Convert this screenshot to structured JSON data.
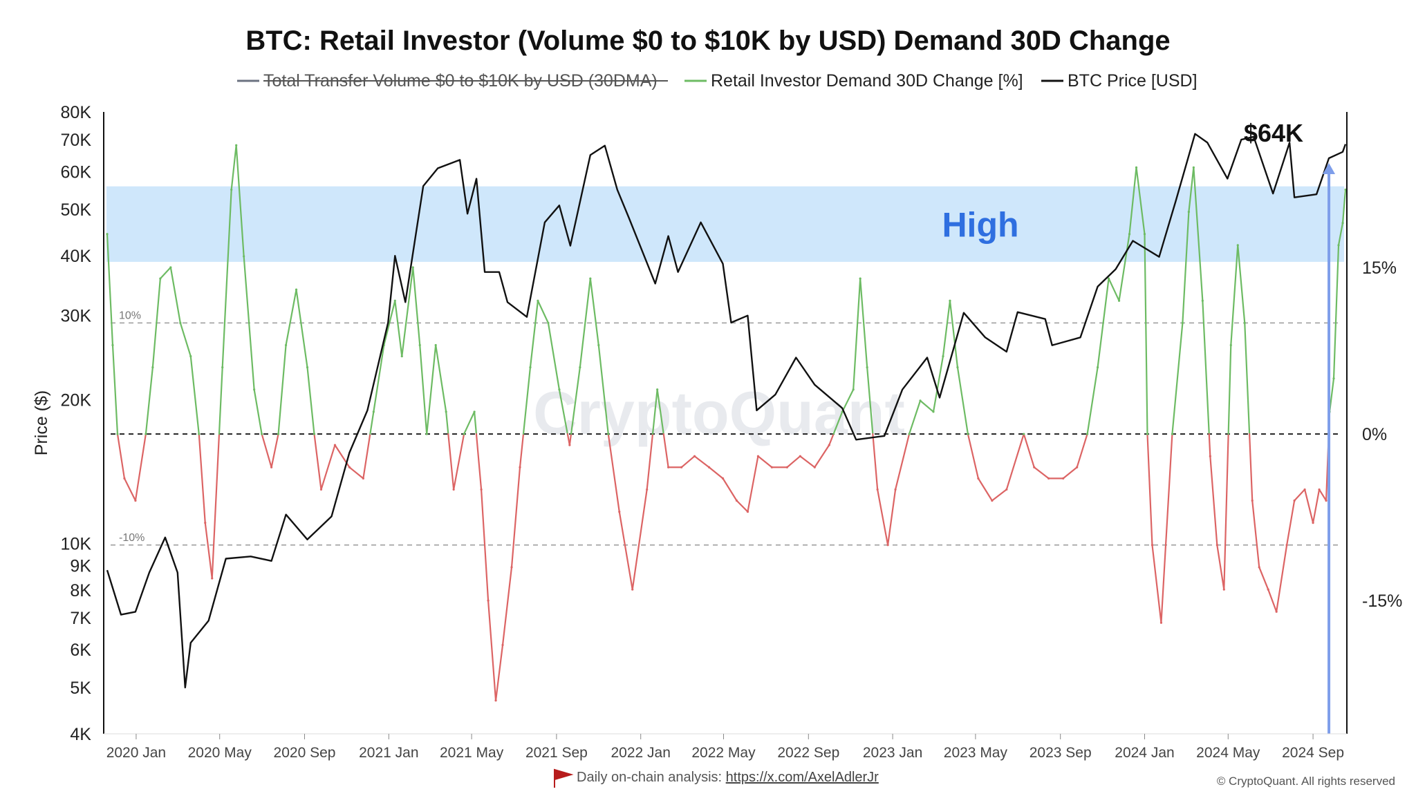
{
  "title": "BTC: Retail Investor (Volume $0 to $10K by USD) Demand 30D Change",
  "legend": [
    {
      "label": "Total Transfer Volume  $0 to $10K by USD (30DMA)",
      "color": "#6b7280",
      "struck": true
    },
    {
      "label": "Retail Investor Demand 30D Change [%]",
      "color": "#6dbb63",
      "struck": false
    },
    {
      "label": "BTC Price [USD]",
      "color": "#111111",
      "struck": false
    }
  ],
  "watermark": "CryptoQuant",
  "band_label": "High",
  "price_annotation": "$64K",
  "footer": {
    "prefix": "Daily on-chain analysis: ",
    "link": "https://x.com/AxelAdlerJr"
  },
  "copyright": "© CryptoQuant. All rights reserved",
  "colors": {
    "positive": "#6dbb63",
    "negative": "#dc6464",
    "price": "#111111",
    "band": "#cfe7fb",
    "marker": "#7e9eea",
    "grid": "#999999"
  },
  "chart_data": {
    "type": "line",
    "x_range": [
      "2019-11-15",
      "2024-10-20"
    ],
    "x_ticks": [
      {
        "date": "2020-01-01",
        "label": "2020 Jan"
      },
      {
        "date": "2020-05-01",
        "label": "2020 May"
      },
      {
        "date": "2020-09-01",
        "label": "2020 Sep"
      },
      {
        "date": "2021-01-01",
        "label": "2021 Jan"
      },
      {
        "date": "2021-05-01",
        "label": "2021 May"
      },
      {
        "date": "2021-09-01",
        "label": "2021 Sep"
      },
      {
        "date": "2022-01-01",
        "label": "2022 Jan"
      },
      {
        "date": "2022-05-01",
        "label": "2022 May"
      },
      {
        "date": "2022-09-01",
        "label": "2022 Sep"
      },
      {
        "date": "2023-01-01",
        "label": "2023 Jan"
      },
      {
        "date": "2023-05-01",
        "label": "2023 May"
      },
      {
        "date": "2023-09-01",
        "label": "2023 Sep"
      },
      {
        "date": "2024-01-01",
        "label": "2024 Jan"
      },
      {
        "date": "2024-05-01",
        "label": "2024 May"
      },
      {
        "date": "2024-09-01",
        "label": "2024 Sep"
      }
    ],
    "left_axis": {
      "label": "Price ($)",
      "scale": "log",
      "range": [
        4000,
        80000
      ],
      "ticks": [
        {
          "value": 80000,
          "label": "80K"
        },
        {
          "value": 70000,
          "label": "70K"
        },
        {
          "value": 60000,
          "label": "60K"
        },
        {
          "value": 50000,
          "label": "50K"
        },
        {
          "value": 40000,
          "label": "40K"
        },
        {
          "value": 30000,
          "label": "30K"
        },
        {
          "value": 20000,
          "label": "20K"
        },
        {
          "value": 10000,
          "label": "10K"
        },
        {
          "value": 9000,
          "label": "9K"
        },
        {
          "value": 8000,
          "label": "8K"
        },
        {
          "value": 7000,
          "label": "7K"
        },
        {
          "value": 6000,
          "label": "6K"
        },
        {
          "value": 5000,
          "label": "5K"
        },
        {
          "value": 4000,
          "label": "4K"
        }
      ]
    },
    "right_axis": {
      "label": "",
      "range": [
        -27,
        29
      ],
      "ticks": [
        {
          "value": 15,
          "label": "15%"
        },
        {
          "value": 0,
          "label": "0%"
        },
        {
          "value": -15,
          "label": "-15%"
        }
      ]
    },
    "reference_lines": [
      {
        "value": 10,
        "label": "10%",
        "style": "dashed"
      },
      {
        "value": 0,
        "label": "",
        "style": "dashed-dark"
      },
      {
        "value": -10,
        "label": "-10%",
        "style": "dashed"
      }
    ],
    "high_band": {
      "from": 15.5,
      "to": 22.3,
      "label": "High"
    },
    "marker_date": "2024-09-24",
    "series": [
      {
        "name": "BTC Price [USD]",
        "axis": "left",
        "points": [
          [
            "2019-11-20",
            8800
          ],
          [
            "2019-12-10",
            7100
          ],
          [
            "2019-12-31",
            7200
          ],
          [
            "2020-01-20",
            8700
          ],
          [
            "2020-02-12",
            10300
          ],
          [
            "2020-03-01",
            8700
          ],
          [
            "2020-03-12",
            5000
          ],
          [
            "2020-03-20",
            6200
          ],
          [
            "2020-04-15",
            6900
          ],
          [
            "2020-05-10",
            9300
          ],
          [
            "2020-06-15",
            9400
          ],
          [
            "2020-07-15",
            9200
          ],
          [
            "2020-08-05",
            11500
          ],
          [
            "2020-09-05",
            10200
          ],
          [
            "2020-10-10",
            11400
          ],
          [
            "2020-11-05",
            15500
          ],
          [
            "2020-12-01",
            19000
          ],
          [
            "2020-12-31",
            29000
          ],
          [
            "2021-01-10",
            40000
          ],
          [
            "2021-01-25",
            32000
          ],
          [
            "2021-02-20",
            56000
          ],
          [
            "2021-03-13",
            61000
          ],
          [
            "2021-04-14",
            63500
          ],
          [
            "2021-04-25",
            49000
          ],
          [
            "2021-05-08",
            58000
          ],
          [
            "2021-05-20",
            37000
          ],
          [
            "2021-06-10",
            37000
          ],
          [
            "2021-06-22",
            32000
          ],
          [
            "2021-07-20",
            29800
          ],
          [
            "2021-08-15",
            47000
          ],
          [
            "2021-09-05",
            51000
          ],
          [
            "2021-09-21",
            42000
          ],
          [
            "2021-10-20",
            65000
          ],
          [
            "2021-11-10",
            68000
          ],
          [
            "2021-11-28",
            55000
          ],
          [
            "2021-12-15",
            48000
          ],
          [
            "2022-01-22",
            35000
          ],
          [
            "2022-02-10",
            44000
          ],
          [
            "2022-02-24",
            37000
          ],
          [
            "2022-03-29",
            47000
          ],
          [
            "2022-04-30",
            38500
          ],
          [
            "2022-05-12",
            29000
          ],
          [
            "2022-06-05",
            30000
          ],
          [
            "2022-06-18",
            19000
          ],
          [
            "2022-07-15",
            20500
          ],
          [
            "2022-08-14",
            24500
          ],
          [
            "2022-09-10",
            21500
          ],
          [
            "2022-10-20",
            19200
          ],
          [
            "2022-11-09",
            16500
          ],
          [
            "2022-12-20",
            16800
          ],
          [
            "2023-01-15",
            21000
          ],
          [
            "2023-02-20",
            24500
          ],
          [
            "2023-03-10",
            20200
          ],
          [
            "2023-04-14",
            30400
          ],
          [
            "2023-05-15",
            27000
          ],
          [
            "2023-06-15",
            25200
          ],
          [
            "2023-07-01",
            30500
          ],
          [
            "2023-08-10",
            29500
          ],
          [
            "2023-08-20",
            26000
          ],
          [
            "2023-09-30",
            27000
          ],
          [
            "2023-10-25",
            34500
          ],
          [
            "2023-11-20",
            37500
          ],
          [
            "2023-12-15",
            43000
          ],
          [
            "2024-01-22",
            39800
          ],
          [
            "2024-02-15",
            52000
          ],
          [
            "2024-03-14",
            72000
          ],
          [
            "2024-04-01",
            69000
          ],
          [
            "2024-04-30",
            58000
          ],
          [
            "2024-05-20",
            70000
          ],
          [
            "2024-06-07",
            71000
          ],
          [
            "2024-07-05",
            54000
          ],
          [
            "2024-07-29",
            69000
          ],
          [
            "2024-08-05",
            53000
          ],
          [
            "2024-09-06",
            53800
          ],
          [
            "2024-09-24",
            64000
          ],
          [
            "2024-10-14",
            66000
          ],
          [
            "2024-10-18",
            68500
          ]
        ]
      },
      {
        "name": "Retail Investor Demand 30D Change [%]",
        "axis": "right",
        "points": [
          [
            "2019-11-20",
            18
          ],
          [
            "2019-11-28",
            8
          ],
          [
            "2019-12-05",
            0
          ],
          [
            "2019-12-15",
            -4
          ],
          [
            "2019-12-31",
            -6
          ],
          [
            "2020-01-15",
            0
          ],
          [
            "2020-01-25",
            6
          ],
          [
            "2020-02-05",
            14
          ],
          [
            "2020-02-20",
            15
          ],
          [
            "2020-03-05",
            10
          ],
          [
            "2020-03-20",
            7
          ],
          [
            "2020-04-01",
            0
          ],
          [
            "2020-04-10",
            -8
          ],
          [
            "2020-04-20",
            -13
          ],
          [
            "2020-05-05",
            6
          ],
          [
            "2020-05-18",
            22
          ],
          [
            "2020-05-25",
            26
          ],
          [
            "2020-06-05",
            16
          ],
          [
            "2020-06-20",
            4
          ],
          [
            "2020-07-01",
            0
          ],
          [
            "2020-07-15",
            -3
          ],
          [
            "2020-07-25",
            0
          ],
          [
            "2020-08-05",
            8
          ],
          [
            "2020-08-20",
            13
          ],
          [
            "2020-09-05",
            6
          ],
          [
            "2020-09-15",
            0
          ],
          [
            "2020-09-25",
            -5
          ],
          [
            "2020-10-15",
            -1
          ],
          [
            "2020-11-05",
            -3
          ],
          [
            "2020-11-25",
            -4
          ],
          [
            "2020-12-10",
            2
          ],
          [
            "2020-12-25",
            8
          ],
          [
            "2021-01-10",
            12
          ],
          [
            "2021-01-20",
            7
          ],
          [
            "2021-02-05",
            15
          ],
          [
            "2021-02-15",
            8
          ],
          [
            "2021-02-25",
            0
          ],
          [
            "2021-03-10",
            8
          ],
          [
            "2021-03-25",
            2
          ],
          [
            "2021-04-05",
            -5
          ],
          [
            "2021-04-20",
            0
          ],
          [
            "2021-05-05",
            2
          ],
          [
            "2021-05-15",
            -5
          ],
          [
            "2021-05-25",
            -15
          ],
          [
            "2021-06-05",
            -24
          ],
          [
            "2021-06-15",
            -19
          ],
          [
            "2021-06-28",
            -12
          ],
          [
            "2021-07-10",
            -3
          ],
          [
            "2021-07-25",
            6
          ],
          [
            "2021-08-05",
            12
          ],
          [
            "2021-08-20",
            10
          ],
          [
            "2021-09-05",
            4
          ],
          [
            "2021-09-20",
            -1
          ],
          [
            "2021-10-05",
            6
          ],
          [
            "2021-10-20",
            14
          ],
          [
            "2021-11-01",
            8
          ],
          [
            "2021-11-15",
            0
          ],
          [
            "2021-12-01",
            -7
          ],
          [
            "2021-12-20",
            -14
          ],
          [
            "2022-01-10",
            -5
          ],
          [
            "2022-01-25",
            4
          ],
          [
            "2022-02-10",
            -3
          ],
          [
            "2022-03-01",
            -3
          ],
          [
            "2022-03-20",
            -2
          ],
          [
            "2022-04-10",
            -3
          ],
          [
            "2022-04-30",
            -4
          ],
          [
            "2022-05-20",
            -6
          ],
          [
            "2022-06-05",
            -7
          ],
          [
            "2022-06-20",
            -2
          ],
          [
            "2022-07-10",
            -3
          ],
          [
            "2022-08-01",
            -3
          ],
          [
            "2022-08-20",
            -2
          ],
          [
            "2022-09-10",
            -3
          ],
          [
            "2022-10-01",
            -1
          ],
          [
            "2022-10-20",
            2
          ],
          [
            "2022-11-05",
            4
          ],
          [
            "2022-11-15",
            14
          ],
          [
            "2022-11-25",
            6
          ],
          [
            "2022-12-10",
            -5
          ],
          [
            "2022-12-25",
            -10
          ],
          [
            "2023-01-05",
            -5
          ],
          [
            "2023-01-25",
            0
          ],
          [
            "2023-02-10",
            3
          ],
          [
            "2023-03-01",
            2
          ],
          [
            "2023-03-15",
            7
          ],
          [
            "2023-03-25",
            12
          ],
          [
            "2023-04-05",
            6
          ],
          [
            "2023-04-20",
            0
          ],
          [
            "2023-05-05",
            -4
          ],
          [
            "2023-05-25",
            -6
          ],
          [
            "2023-06-15",
            -5
          ],
          [
            "2023-07-10",
            0
          ],
          [
            "2023-07-25",
            -3
          ],
          [
            "2023-08-15",
            -4
          ],
          [
            "2023-09-05",
            -4
          ],
          [
            "2023-09-25",
            -3
          ],
          [
            "2023-10-10",
            0
          ],
          [
            "2023-10-25",
            6
          ],
          [
            "2023-11-10",
            14
          ],
          [
            "2023-11-25",
            12
          ],
          [
            "2023-12-10",
            18
          ],
          [
            "2023-12-20",
            24
          ],
          [
            "2024-01-01",
            18
          ],
          [
            "2024-01-05",
            0
          ],
          [
            "2024-01-12",
            -10
          ],
          [
            "2024-01-25",
            -17
          ],
          [
            "2024-02-10",
            0
          ],
          [
            "2024-02-25",
            10
          ],
          [
            "2024-03-05",
            20
          ],
          [
            "2024-03-12",
            24
          ],
          [
            "2024-03-25",
            12
          ],
          [
            "2024-04-05",
            -2
          ],
          [
            "2024-04-15",
            -10
          ],
          [
            "2024-04-25",
            -14
          ],
          [
            "2024-05-05",
            8
          ],
          [
            "2024-05-15",
            17
          ],
          [
            "2024-05-25",
            10
          ],
          [
            "2024-06-05",
            -6
          ],
          [
            "2024-06-15",
            -12
          ],
          [
            "2024-06-28",
            -14
          ],
          [
            "2024-07-10",
            -16
          ],
          [
            "2024-07-25",
            -10
          ],
          [
            "2024-08-05",
            -6
          ],
          [
            "2024-08-20",
            -5
          ],
          [
            "2024-09-01",
            -8
          ],
          [
            "2024-09-10",
            -5
          ],
          [
            "2024-09-20",
            -6
          ],
          [
            "2024-09-25",
            2
          ],
          [
            "2024-10-01",
            5
          ],
          [
            "2024-10-08",
            17
          ],
          [
            "2024-10-14",
            19
          ],
          [
            "2024-10-18",
            22
          ]
        ]
      }
    ]
  }
}
